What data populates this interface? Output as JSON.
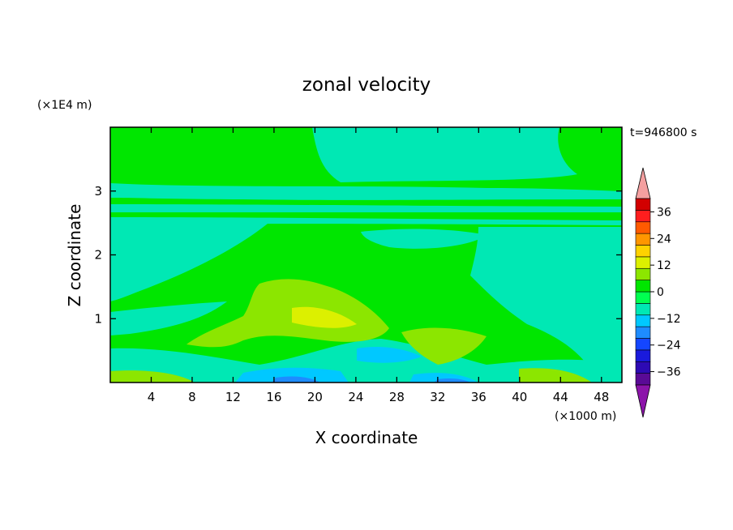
{
  "chart_data": {
    "type": "heatmap",
    "title": "zonal velocity",
    "xlabel": "X coordinate",
    "ylabel": "Z coordinate",
    "x_units": "(×1000 m)",
    "y_units": "(×1E4 m)",
    "time_label": "t=946800 s",
    "xlim": [
      0,
      50
    ],
    "ylim": [
      0,
      4
    ],
    "x_ticks": [
      4,
      8,
      12,
      16,
      20,
      24,
      28,
      32,
      36,
      40,
      44,
      48
    ],
    "y_ticks": [
      1,
      2,
      3
    ],
    "colorbar": {
      "tick_labels": [
        "36",
        "24",
        "12",
        "0",
        "-12",
        "-24",
        "-36"
      ],
      "tick_values": [
        36,
        24,
        12,
        0,
        -12,
        -24,
        -36
      ],
      "levels": [
        -42,
        -36,
        -30,
        -24,
        -18,
        -12,
        -6,
        0,
        6,
        12,
        18,
        24,
        30,
        36,
        42
      ],
      "colors": [
        "#5a0a96",
        "#2d0ab4",
        "#1a1adc",
        "#1446ff",
        "#1e8cff",
        "#00c8ff",
        "#00e8b4",
        "#00ff50",
        "#00e600",
        "#8ce600",
        "#dcf000",
        "#ffd200",
        "#ff9600",
        "#ff5a00",
        "#ff1e1e",
        "#d20000"
      ],
      "under_color": "#8c14aa",
      "over_color": "#f4a0a0"
    },
    "grid": false
  }
}
